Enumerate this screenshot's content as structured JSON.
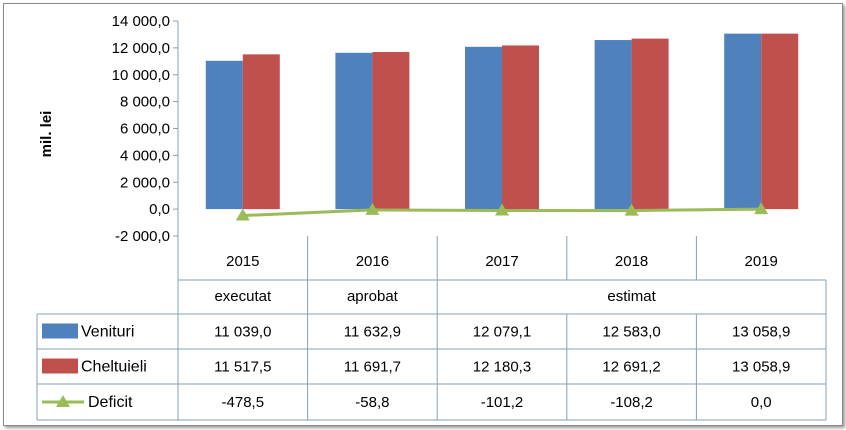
{
  "chart_data": {
    "type": "bar",
    "ylabel": "mil. lei",
    "ylim": [
      -2000,
      14000
    ],
    "yticks": [
      -2000,
      0,
      2000,
      4000,
      6000,
      8000,
      10000,
      12000,
      14000
    ],
    "ytick_labels": [
      "-2 000,0",
      "0,0",
      "2 000,0",
      "4 000,0",
      "6 000,0",
      "8 000,0",
      "10 000,0",
      "12 000,0",
      "14 000,0"
    ],
    "categories": [
      "2015",
      "2016",
      "2017",
      "2018",
      "2019"
    ],
    "category_groups": [
      {
        "label": "executat",
        "span": 1
      },
      {
        "label": "aprobat",
        "span": 1
      },
      {
        "label": "estimat",
        "span": 3
      }
    ],
    "series": [
      {
        "name": "Venituri",
        "type": "bar",
        "color": "#4f81bd",
        "values": [
          11039.0,
          11632.9,
          12079.1,
          12583.0,
          13058.9
        ],
        "labels": [
          "11 039,0",
          "11 632,9",
          "12 079,1",
          "12 583,0",
          "13 058,9"
        ]
      },
      {
        "name": "Cheltuieli",
        "type": "bar",
        "color": "#c0504d",
        "values": [
          11517.5,
          11691.7,
          12180.3,
          12691.2,
          13058.9
        ],
        "labels": [
          "11 517,5",
          "11 691,7",
          "12 180,3",
          "12 691,2",
          "13 058,9"
        ]
      },
      {
        "name": "Deficit",
        "type": "line",
        "color": "#9bbb59",
        "values": [
          -478.5,
          -58.8,
          -101.2,
          -108.2,
          0.0
        ],
        "labels": [
          "-478,5",
          "-58,8",
          "-101,2",
          "-108,2",
          "0,0"
        ]
      }
    ],
    "grid": false,
    "legend": "data-table"
  }
}
